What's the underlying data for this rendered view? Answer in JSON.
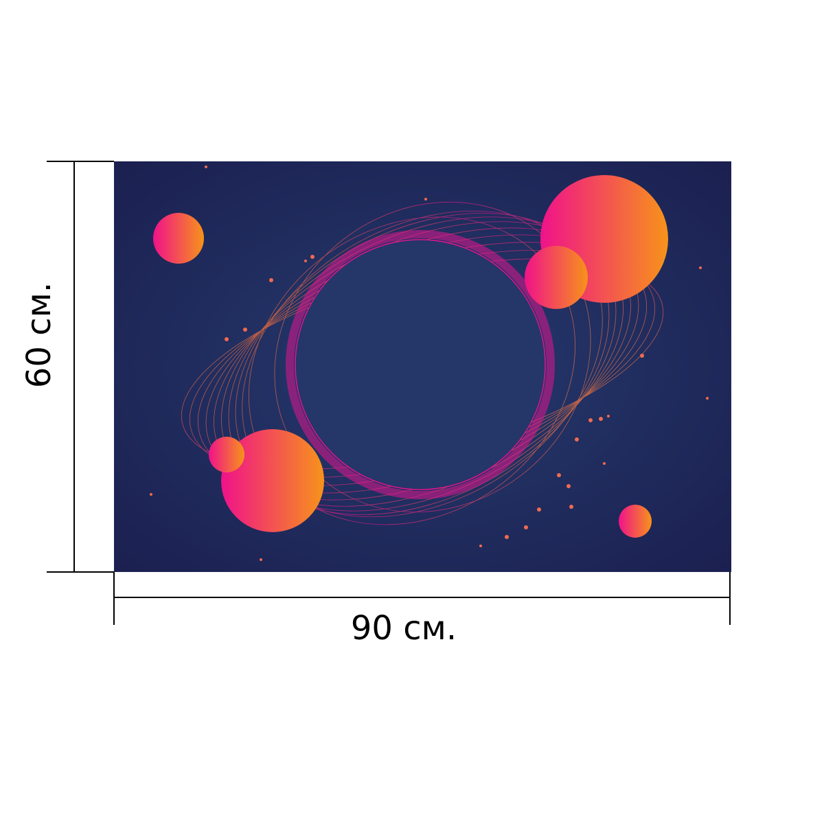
{
  "dimensions": {
    "height": "60 см.",
    "width": "90 см."
  }
}
